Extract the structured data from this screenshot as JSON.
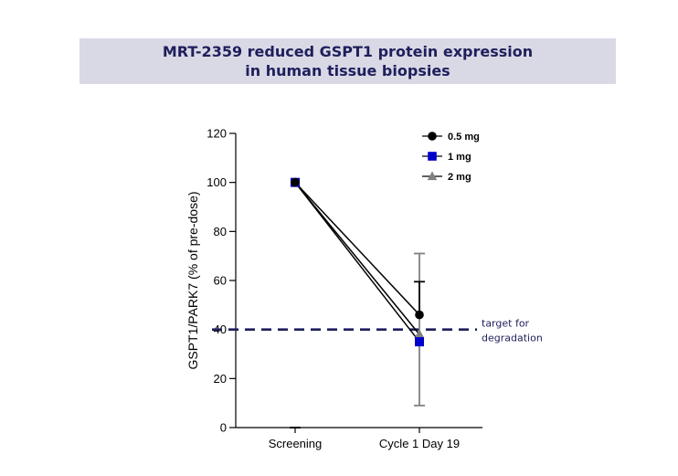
{
  "title": {
    "line1": "MRT-2359 reduced GSPT1 protein expression",
    "line2": "in human tissue biopsies"
  },
  "chart_data": {
    "type": "line",
    "title": "MRT-2359 reduced GSPT1 protein expression in human tissue biopsies",
    "xlabel": "",
    "ylabel": "GSPT1/PARK7  (% of pre-dose)",
    "categories": [
      "Screening",
      "Cycle 1 Day 19"
    ],
    "ylim": [
      0,
      120
    ],
    "yticks": [
      0,
      20,
      40,
      60,
      80,
      100,
      120
    ],
    "legend_position": "top-right",
    "series": [
      {
        "name": "0.5 mg",
        "marker": "circle",
        "color": "#000000",
        "values": [
          100,
          46
        ],
        "error_upper": [
          0,
          59.5
        ],
        "error_lower": [
          0,
          46
        ]
      },
      {
        "name": "1 mg",
        "marker": "square",
        "color": "#0000cc",
        "values": [
          100,
          35
        ],
        "error_upper": [
          0,
          35
        ],
        "error_lower": [
          0,
          35
        ]
      },
      {
        "name": "2 mg",
        "marker": "triangle",
        "color": "#808080",
        "values": [
          100,
          38
        ],
        "error_upper": [
          0,
          71
        ],
        "error_lower": [
          0,
          9
        ]
      }
    ],
    "reference_line": {
      "value": 40,
      "style": "dashed",
      "color": "#1f1f5c",
      "label_line1": "target for",
      "label_line2": "degradation"
    }
  }
}
